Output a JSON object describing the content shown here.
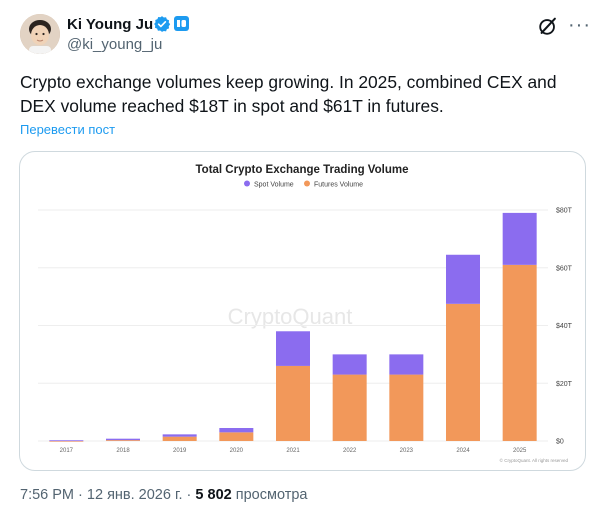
{
  "author": {
    "name": "Ki Young Ju",
    "handle": "@ki_young_ju",
    "verified_color": "#1d9bf0"
  },
  "tweet": {
    "text": "Crypto exchange volumes keep growing. In 2025, combined CEX and DEX volume reached $18T in spot and $61T in futures.",
    "translate_label": "Перевести пост"
  },
  "meta": {
    "time": "7:56 PM",
    "separator": "·",
    "date": "12 янв. 2026 г.",
    "views_count": "5 802",
    "views_label": "просмотра"
  },
  "chart_data": {
    "type": "bar",
    "stacked": true,
    "title": "Total Crypto Exchange Trading Volume",
    "categories": [
      "2017",
      "2018",
      "2019",
      "2020",
      "2021",
      "2022",
      "2023",
      "2024",
      "2025"
    ],
    "series": [
      {
        "name": "Futures Volume",
        "color": "#f2985a",
        "values": [
          0.05,
          0.3,
          1.5,
          3,
          26,
          23,
          23,
          47.5,
          61
        ]
      },
      {
        "name": "Spot Volume",
        "color": "#8b6cef",
        "values": [
          0.2,
          0.5,
          0.8,
          1.5,
          12,
          7,
          7,
          17,
          18
        ]
      }
    ],
    "ylim": [
      0,
      80
    ],
    "yticks": [
      "$0",
      "$20T",
      "$40T",
      "$60T",
      "$80T"
    ],
    "ytick_values": [
      0,
      20,
      40,
      60,
      80
    ],
    "grid": true,
    "legend_position": "top-center",
    "watermark": "CryptoQuant",
    "footnote": "© CryptoQuant. All rights reserved"
  }
}
